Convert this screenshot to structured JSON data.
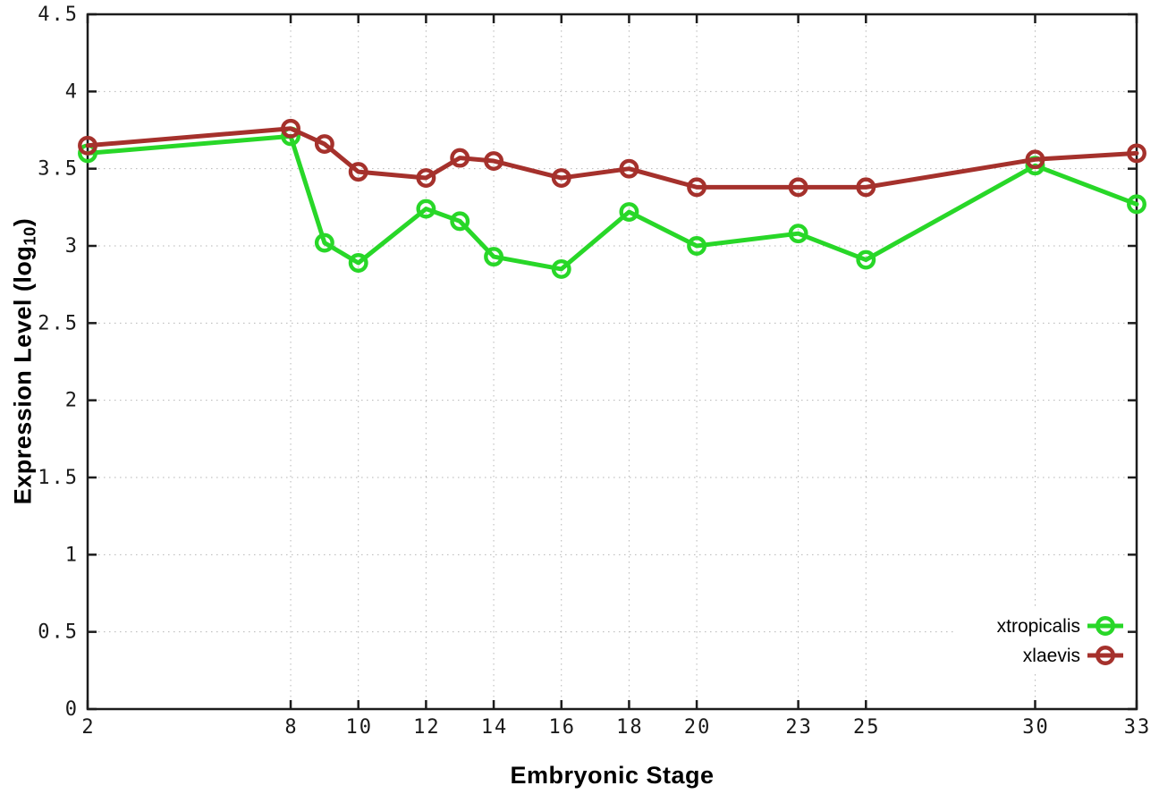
{
  "figure": {
    "xlabel": "Embryonic Stage",
    "ylabel_prefix": "Expression Level (log",
    "ylabel_subscript": "10",
    "ylabel_suffix": ")"
  },
  "chart_data": {
    "type": "line",
    "title": "",
    "xlabel": "Embryonic Stage",
    "ylabel": "Expression Level (log10)",
    "x": [
      2,
      8,
      9,
      10,
      12,
      13,
      14,
      16,
      18,
      20,
      23,
      25,
      30,
      33
    ],
    "series": [
      {
        "name": "xtropicalis",
        "color": "#28d728",
        "values": [
          3.6,
          3.71,
          3.02,
          2.89,
          3.24,
          3.16,
          2.93,
          2.85,
          3.22,
          3.0,
          3.08,
          2.91,
          3.52,
          3.27
        ]
      },
      {
        "name": "xlaevis",
        "color": "#a5312c",
        "values": [
          3.65,
          3.76,
          3.66,
          3.48,
          3.44,
          3.57,
          3.55,
          3.44,
          3.5,
          3.38,
          3.38,
          3.38,
          3.56,
          3.6
        ]
      }
    ],
    "xticks": [
      2,
      8,
      10,
      12,
      14,
      16,
      18,
      20,
      23,
      25,
      30,
      33
    ],
    "yticks": [
      0,
      0.5,
      1,
      1.5,
      2,
      2.5,
      3,
      3.5,
      4,
      4.5
    ],
    "xlim": [
      2,
      33
    ],
    "ylim": [
      0,
      4.5
    ],
    "grid": true,
    "legend_position": "bottom-right",
    "legend_entries": [
      "xtropicalis",
      "xlaevis"
    ]
  },
  "style_colors": {
    "border": "#1c1c1c",
    "grid": "#b5b5b5",
    "tick_label": "#1a1a1a",
    "legend_text": "#000000",
    "background": "#ffffff"
  }
}
